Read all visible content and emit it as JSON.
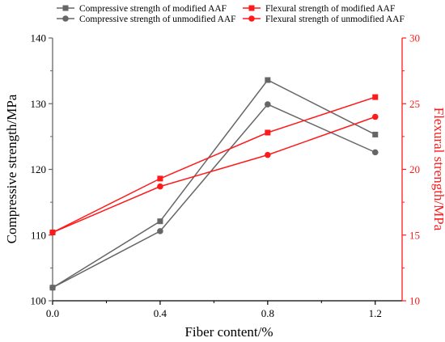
{
  "chart_data": {
    "type": "line",
    "title": "",
    "xlabel": "Fiber content/%",
    "ylabel_left": "Compressive strength/MPa",
    "ylabel_right": "Flexural strength/MPa",
    "x": [
      0.0,
      0.4,
      0.8,
      1.2
    ],
    "x_tick_labels": [
      "0.0",
      "0.4",
      "0.8",
      "1.2"
    ],
    "xlim": [
      0.0,
      1.3
    ],
    "ylim_left": [
      100,
      140
    ],
    "y_ticks_left": [
      "100",
      "110",
      "120",
      "130",
      "140"
    ],
    "ylim_right": [
      10,
      30
    ],
    "y_ticks_right": [
      "10",
      "15",
      "20",
      "25",
      "30"
    ],
    "legend_position": "top",
    "colors": {
      "compressive": "#666666",
      "flexural": "#ff1a1a"
    },
    "series": [
      {
        "name": "Compressive strength of modified AAF",
        "axis": "left",
        "marker": "square",
        "values": [
          102.0,
          112.1,
          133.6,
          125.3
        ]
      },
      {
        "name": "Compressive strength of unmodified AAF",
        "axis": "left",
        "marker": "circle",
        "values": [
          102.0,
          110.6,
          129.9,
          122.6
        ]
      },
      {
        "name": "Flexural strength of modified AAF",
        "axis": "right",
        "marker": "square",
        "values": [
          15.2,
          19.3,
          22.8,
          25.5
        ]
      },
      {
        "name": "Flexural strength of unmodified AAF",
        "axis": "right",
        "marker": "circle",
        "values": [
          15.2,
          18.7,
          21.1,
          24.0
        ]
      }
    ]
  }
}
